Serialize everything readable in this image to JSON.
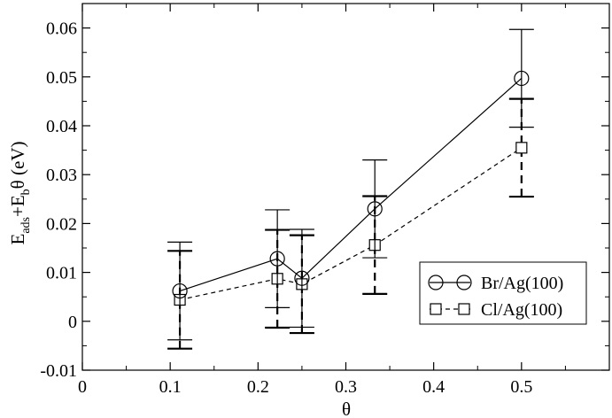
{
  "chart_data": {
    "type": "line",
    "xlabel": "θ",
    "ylabel_parts": {
      "e1": "E",
      "sub1": "ads",
      "plus": "+E",
      "sub2": "b",
      "theta": "θ",
      "unit": " (eV)"
    },
    "xlim": [
      0,
      0.6
    ],
    "ylim": [
      -0.01,
      0.065
    ],
    "x_ticks": [
      0,
      0.1,
      0.2,
      0.3,
      0.4,
      0.5
    ],
    "x_tick_labels": [
      "0",
      "0.1",
      "0.2",
      "0.3",
      "0.4",
      "0.5"
    ],
    "y_ticks": [
      -0.01,
      0,
      0.01,
      0.02,
      0.03,
      0.04,
      0.05,
      0.06
    ],
    "y_tick_labels": [
      "-0.01",
      "0",
      "0.01",
      "0.02",
      "0.03",
      "0.04",
      "0.05",
      "0.06"
    ],
    "grid": false,
    "legend_position": "lower-right",
    "series": [
      {
        "name": "Br/Ag(100)",
        "marker": "circle",
        "line_style": "solid",
        "error_style": "solid",
        "color": "#000000",
        "x": [
          0.111,
          0.222,
          0.25,
          0.333,
          0.5
        ],
        "y": [
          0.0062,
          0.0128,
          0.0088,
          0.023,
          0.0497
        ],
        "err": [
          0.01,
          0.01,
          0.01,
          0.01,
          0.01
        ]
      },
      {
        "name": "Cl/Ag(100)",
        "marker": "square",
        "line_style": "dashed",
        "error_style": "dashed",
        "color": "#000000",
        "x": [
          0.111,
          0.222,
          0.25,
          0.333,
          0.5
        ],
        "y": [
          0.0044,
          0.0087,
          0.0076,
          0.0156,
          0.0355
        ],
        "err": [
          0.01,
          0.01,
          0.01,
          0.01,
          0.01
        ]
      }
    ]
  }
}
